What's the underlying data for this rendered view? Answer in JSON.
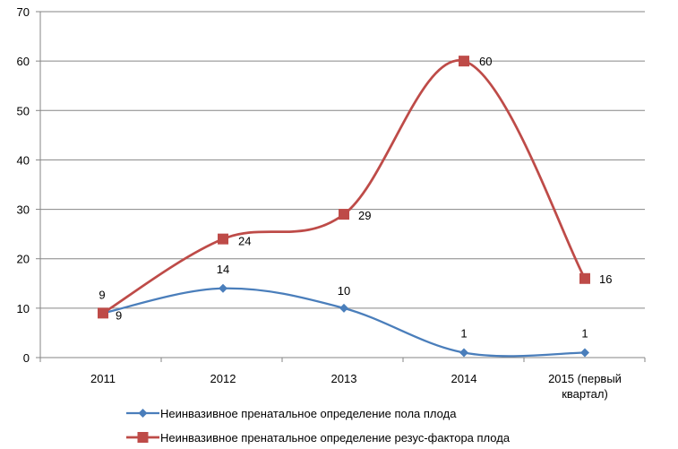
{
  "chart_data": {
    "type": "line",
    "title": "",
    "xlabel": "",
    "ylabel": "",
    "ylim": [
      0,
      70
    ],
    "yticks": [
      0,
      10,
      20,
      30,
      40,
      50,
      60,
      70
    ],
    "grid": true,
    "legend": "bottom",
    "categories": [
      [
        "2011"
      ],
      [
        "2012"
      ],
      [
        "2013"
      ],
      [
        "2014"
      ],
      [
        "2015 (первый",
        "квартал)"
      ]
    ],
    "series": [
      {
        "name": "Неинвазивное пренатальное определение пола плода",
        "color": "#4a7ebb",
        "marker": "diamond",
        "values": [
          9,
          14,
          10,
          1,
          1
        ],
        "labels": [
          "9",
          "14",
          "10",
          "1",
          "1"
        ]
      },
      {
        "name": "Неинвазивное пренатальное определение резус-фактора плода",
        "color": "#be4b48",
        "marker": "square",
        "values": [
          9,
          24,
          29,
          60,
          16
        ],
        "labels": [
          "9",
          "24",
          "29",
          "60",
          "16"
        ]
      }
    ]
  }
}
